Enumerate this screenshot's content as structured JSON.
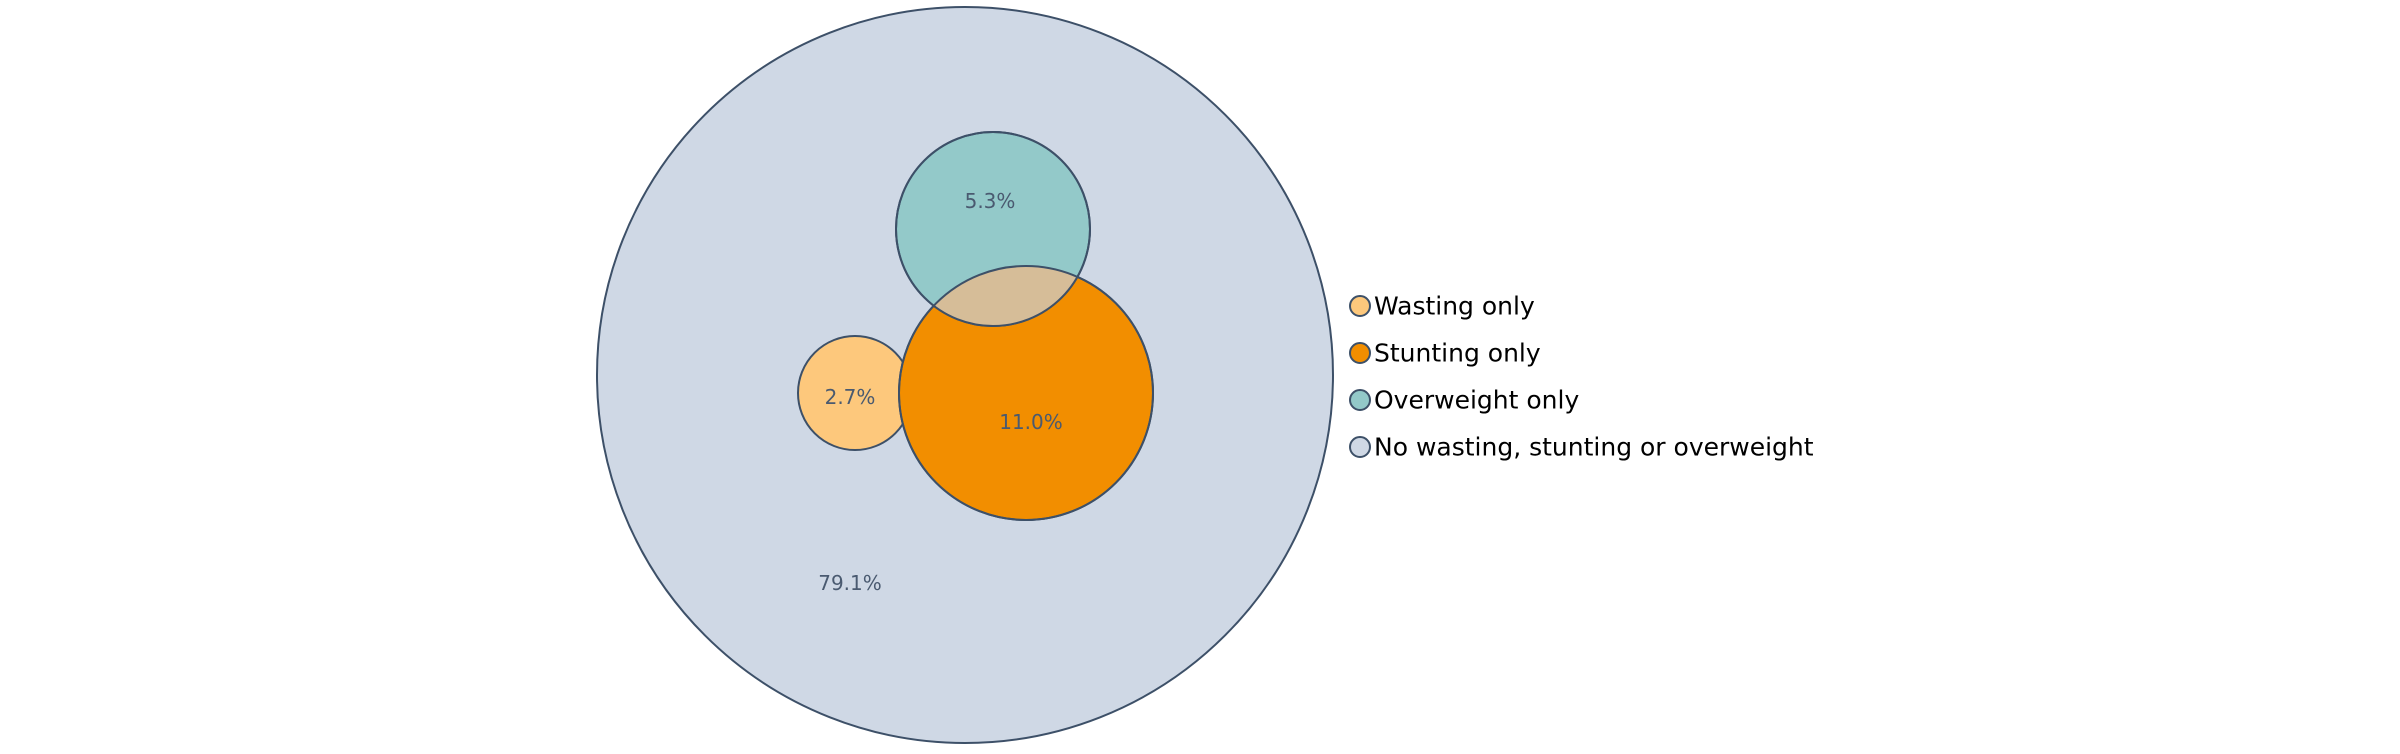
{
  "chart_data": {
    "type": "venn",
    "title": "",
    "sets": [
      {
        "key": "total",
        "name": "No wasting, stunting or overweight",
        "label": "79.1%",
        "value": 79.1,
        "color": "#cfd8e5"
      },
      {
        "key": "wasting",
        "name": "Wasting only",
        "label": "2.7%",
        "value": 2.7,
        "color": "#fdc87c"
      },
      {
        "key": "stunting",
        "name": "Stunting only",
        "label": "11.0%",
        "value": 11.0,
        "color": "#f28e00"
      },
      {
        "key": "overweight",
        "name": "Overweight only",
        "label": "5.3%",
        "value": 5.3,
        "color": "#93c9c9"
      }
    ],
    "overlaps": [
      {
        "between": [
          "overweight",
          "stunting"
        ],
        "color": "#d6bd98"
      }
    ],
    "legend": {
      "position": "right",
      "order": [
        "wasting",
        "stunting",
        "overweight",
        "total"
      ]
    },
    "stroke_color": "#3d5068",
    "label_color": "#4a5a70",
    "legend_text_color": "#000000"
  }
}
